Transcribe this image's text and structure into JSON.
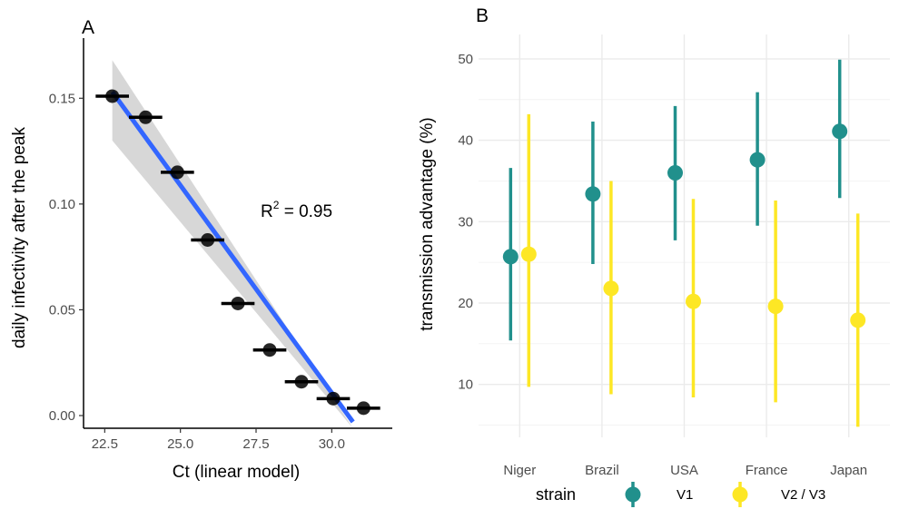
{
  "chart_data": [
    {
      "panel": "A",
      "type": "scatter",
      "xlabel": "Ct (linear model)",
      "ylabel": "daily infectivity after the peak",
      "xlim": [
        21.8,
        32.0
      ],
      "ylim": [
        -0.006,
        0.175
      ],
      "x_ticks": [
        22.5,
        25.0,
        27.5,
        30.0
      ],
      "x_tick_labels": [
        "22.5",
        "25.0",
        "27.5",
        "30.0"
      ],
      "y_ticks": [
        0.0,
        0.05,
        0.1,
        0.15
      ],
      "y_tick_labels": [
        "0.00",
        "0.05",
        "0.10",
        "0.15"
      ],
      "grid": false,
      "points": [
        {
          "x": 22.75,
          "y": 0.151,
          "xerr": 0.55
        },
        {
          "x": 23.85,
          "y": 0.141,
          "xerr": 0.55
        },
        {
          "x": 24.9,
          "y": 0.115,
          "xerr": 0.55
        },
        {
          "x": 25.9,
          "y": 0.083,
          "xerr": 0.55
        },
        {
          "x": 26.9,
          "y": 0.053,
          "xerr": 0.55
        },
        {
          "x": 27.95,
          "y": 0.031,
          "xerr": 0.55
        },
        {
          "x": 29.0,
          "y": 0.016,
          "xerr": 0.55
        },
        {
          "x": 30.05,
          "y": 0.008,
          "xerr": 0.55
        },
        {
          "x": 31.05,
          "y": 0.0035,
          "xerr": 0.55
        }
      ],
      "fit": {
        "x": [
          22.75,
          30.7
        ],
        "y": [
          0.153,
          -0.003
        ],
        "band_lower": [
          0.13,
          -0.006
        ],
        "band_upper": [
          0.168,
          -0.006
        ],
        "color": "#3366ff",
        "band_color": "#d3d3d3"
      },
      "annotation": {
        "base": "R",
        "sup": "2",
        "rest": " = 0.95"
      }
    },
    {
      "panel": "B",
      "type": "scatter",
      "xlabel": "",
      "ylabel": "transmission advantage (%)",
      "categories": [
        "Niger",
        "Brazil",
        "USA",
        "France",
        "Japan"
      ],
      "ylim": [
        3.5,
        53
      ],
      "y_ticks": [
        10,
        20,
        30,
        40,
        50
      ],
      "y_tick_labels": [
        "10",
        "20",
        "30",
        "40",
        "50"
      ],
      "grid": true,
      "legend": {
        "title": "strain",
        "placement": "bottom"
      },
      "series": [
        {
          "name": "V1",
          "color": "#21908c",
          "values": [
            25.7,
            33.4,
            36.0,
            37.6,
            41.1
          ],
          "lower": [
            15.4,
            24.8,
            27.7,
            29.5,
            32.9
          ],
          "upper": [
            36.6,
            42.3,
            44.2,
            45.9,
            49.9
          ]
        },
        {
          "name": "V2 / V3",
          "color": "#fde725",
          "values": [
            26.0,
            21.8,
            20.2,
            19.6,
            17.9
          ],
          "lower": [
            9.7,
            8.8,
            8.4,
            7.8,
            4.8
          ],
          "upper": [
            43.2,
            35.0,
            32.8,
            32.6,
            31.0
          ]
        }
      ]
    }
  ],
  "panel_labels": {
    "a": "A",
    "b": "B"
  }
}
